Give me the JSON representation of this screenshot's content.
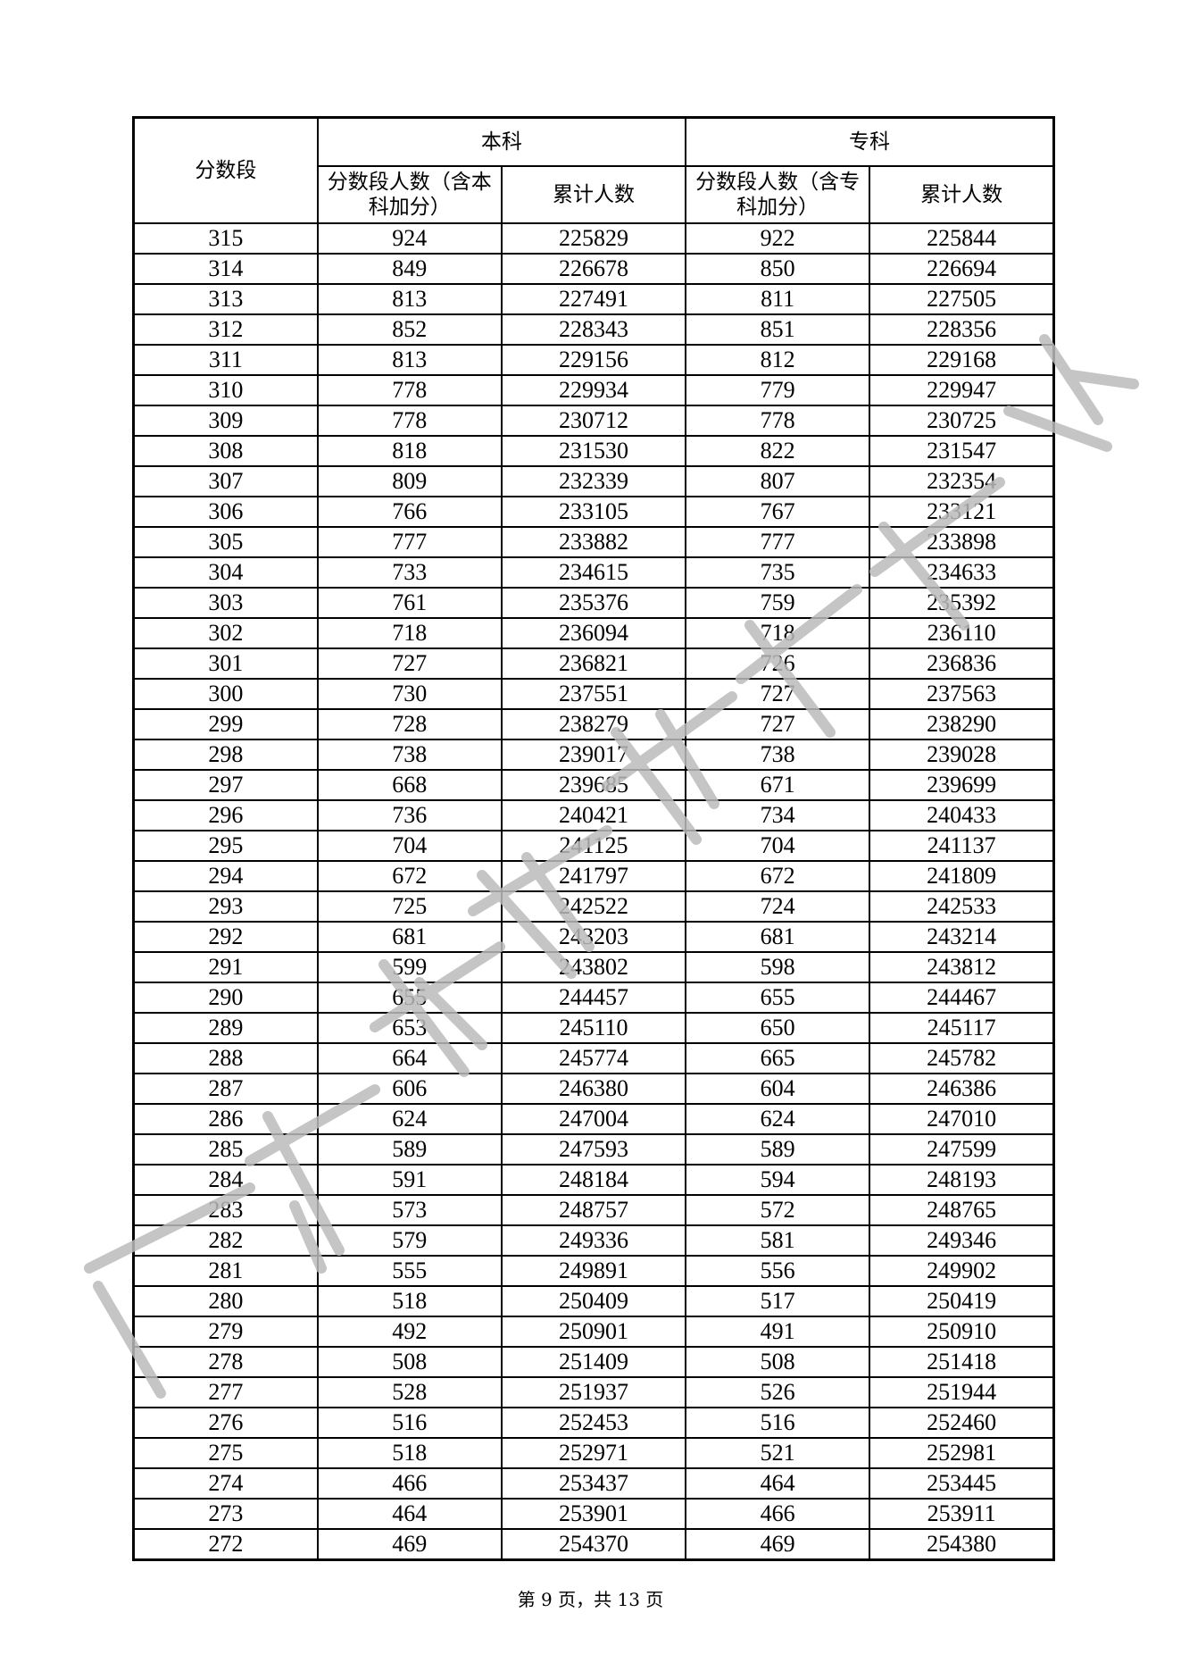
{
  "header": {
    "score_band": "分数段",
    "undergrad": "本科",
    "junior": "专科",
    "undergrad_count": "分数段人数（含本科加分）",
    "undergrad_cum": "累计人数",
    "junior_count": "分数段人数（含专科加分）",
    "junior_cum": "累计人数"
  },
  "rows": [
    [
      "315",
      "924",
      "225829",
      "922",
      "225844"
    ],
    [
      "314",
      "849",
      "226678",
      "850",
      "226694"
    ],
    [
      "313",
      "813",
      "227491",
      "811",
      "227505"
    ],
    [
      "312",
      "852",
      "228343",
      "851",
      "228356"
    ],
    [
      "311",
      "813",
      "229156",
      "812",
      "229168"
    ],
    [
      "310",
      "778",
      "229934",
      "779",
      "229947"
    ],
    [
      "309",
      "778",
      "230712",
      "778",
      "230725"
    ],
    [
      "308",
      "818",
      "231530",
      "822",
      "231547"
    ],
    [
      "307",
      "809",
      "232339",
      "807",
      "232354"
    ],
    [
      "306",
      "766",
      "233105",
      "767",
      "233121"
    ],
    [
      "305",
      "777",
      "233882",
      "777",
      "233898"
    ],
    [
      "304",
      "733",
      "234615",
      "735",
      "234633"
    ],
    [
      "303",
      "761",
      "235376",
      "759",
      "235392"
    ],
    [
      "302",
      "718",
      "236094",
      "718",
      "236110"
    ],
    [
      "301",
      "727",
      "236821",
      "726",
      "236836"
    ],
    [
      "300",
      "730",
      "237551",
      "727",
      "237563"
    ],
    [
      "299",
      "728",
      "238279",
      "727",
      "238290"
    ],
    [
      "298",
      "738",
      "239017",
      "738",
      "239028"
    ],
    [
      "297",
      "668",
      "239685",
      "671",
      "239699"
    ],
    [
      "296",
      "736",
      "240421",
      "734",
      "240433"
    ],
    [
      "295",
      "704",
      "241125",
      "704",
      "241137"
    ],
    [
      "294",
      "672",
      "241797",
      "672",
      "241809"
    ],
    [
      "293",
      "725",
      "242522",
      "724",
      "242533"
    ],
    [
      "292",
      "681",
      "243203",
      "681",
      "243214"
    ],
    [
      "291",
      "599",
      "243802",
      "598",
      "243812"
    ],
    [
      "290",
      "655",
      "244457",
      "655",
      "244467"
    ],
    [
      "289",
      "653",
      "245110",
      "650",
      "245117"
    ],
    [
      "288",
      "664",
      "245774",
      "665",
      "245782"
    ],
    [
      "287",
      "606",
      "246380",
      "604",
      "246386"
    ],
    [
      "286",
      "624",
      "247004",
      "624",
      "247010"
    ],
    [
      "285",
      "589",
      "247593",
      "589",
      "247599"
    ],
    [
      "284",
      "591",
      "248184",
      "594",
      "248193"
    ],
    [
      "283",
      "573",
      "248757",
      "572",
      "248765"
    ],
    [
      "282",
      "579",
      "249336",
      "581",
      "249346"
    ],
    [
      "281",
      "555",
      "249891",
      "556",
      "249902"
    ],
    [
      "280",
      "518",
      "250409",
      "517",
      "250419"
    ],
    [
      "279",
      "492",
      "250901",
      "491",
      "250910"
    ],
    [
      "278",
      "508",
      "251409",
      "508",
      "251418"
    ],
    [
      "277",
      "528",
      "251937",
      "526",
      "251944"
    ],
    [
      "276",
      "516",
      "252453",
      "516",
      "252460"
    ],
    [
      "275",
      "518",
      "252971",
      "521",
      "252981"
    ],
    [
      "274",
      "466",
      "253437",
      "464",
      "253445"
    ],
    [
      "273",
      "464",
      "253901",
      "466",
      "253911"
    ],
    [
      "272",
      "469",
      "254370",
      "469",
      "254380"
    ]
  ],
  "footer": "第 9 页，共 13 页",
  "watermark": "广东省教育考试院"
}
